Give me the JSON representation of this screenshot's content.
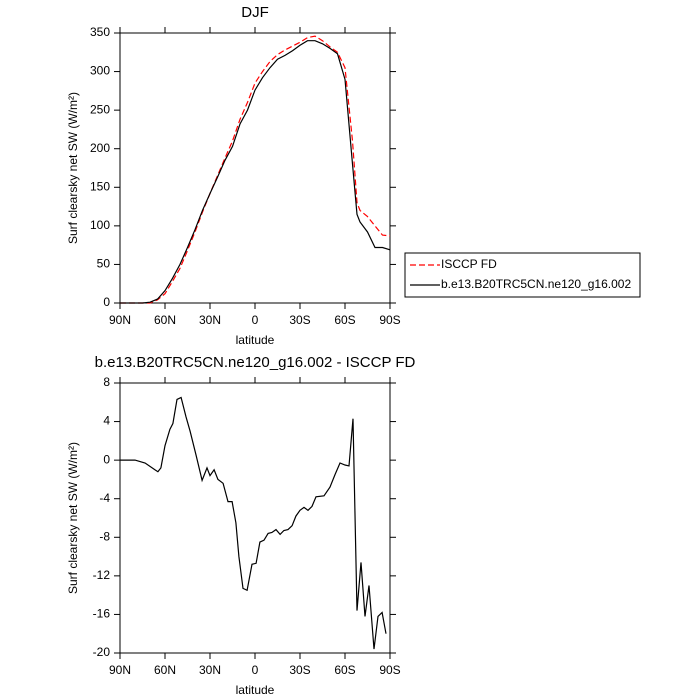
{
  "chart_data": [
    {
      "type": "line",
      "title": "DJF",
      "xlabel": "latitude",
      "ylabel": "Surf clearsky net SW (W/m²)",
      "x": [
        90,
        85,
        80,
        75,
        70,
        65,
        60,
        55,
        50,
        45,
        40,
        35,
        30,
        25,
        20,
        15,
        10,
        5,
        0,
        -5,
        -10,
        -15,
        -20,
        -25,
        -30,
        -35,
        -40,
        -45,
        -50,
        -55,
        -60,
        -65,
        -68,
        -70,
        -75,
        -80,
        -85,
        -90
      ],
      "series": [
        {
          "name": "ISCCP FD",
          "color": "#ff0000",
          "linestyle": "dashed",
          "values": [
            0,
            0,
            0,
            0,
            0,
            4,
            12,
            28,
            45,
            68,
            92,
            118,
            142,
            165,
            188,
            210,
            238,
            260,
            285,
            300,
            313,
            322,
            328,
            333,
            338,
            344,
            346,
            340,
            332,
            325,
            305,
            210,
            130,
            120,
            112,
            100,
            88,
            87
          ]
        },
        {
          "name": "b.e13.B20TRC5CN.ne120_g16.002",
          "color": "#000000",
          "linestyle": "solid",
          "values": [
            0,
            0,
            0,
            0,
            1,
            5,
            16,
            32,
            50,
            72,
            95,
            120,
            142,
            163,
            185,
            203,
            232,
            250,
            276,
            292,
            305,
            316,
            321,
            327,
            334,
            340,
            340,
            336,
            330,
            323,
            290,
            180,
            115,
            105,
            92,
            72,
            72,
            69
          ]
        }
      ],
      "xlim": [
        90,
        -90
      ],
      "xticks": [
        {
          "value": 90,
          "label": "90N"
        },
        {
          "value": 60,
          "label": "60N"
        },
        {
          "value": 30,
          "label": "30N"
        },
        0,
        {
          "value": -30,
          "label": "30S"
        },
        {
          "value": -60,
          "label": "60S"
        },
        {
          "value": -90,
          "label": "90S"
        }
      ],
      "ylim": [
        0,
        350
      ],
      "yticks": [
        0,
        50,
        100,
        150,
        200,
        250,
        300,
        350
      ],
      "legend": "right"
    },
    {
      "type": "line",
      "title": "b.e13.B20TRC5CN.ne120_g16.002 - ISCCP FD",
      "xlabel": "latitude",
      "ylabel": "Surf clearsky net SW (W/m²)",
      "x": [
        90,
        80,
        73.3,
        66.7,
        64.7,
        62.7,
        60,
        56.7,
        54.7,
        52,
        49.3,
        46,
        43.3,
        39.3,
        35.3,
        32,
        30,
        27.3,
        24.7,
        21.3,
        18,
        15.3,
        12.7,
        10.7,
        8,
        5.3,
        2,
        -0.7,
        -3.3,
        -6,
        -8.7,
        -11.3,
        -14,
        -16.7,
        -19.3,
        -22,
        -24.7,
        -27.3,
        -30,
        -32.7,
        -35.3,
        -38,
        -40.7,
        -46,
        -50,
        -53.3,
        -56.7,
        -60,
        -62.7,
        -65.3,
        -68,
        -70.7,
        -73.3,
        -76,
        -79.3,
        -82,
        -84.7,
        -87.3
      ],
      "series": [
        {
          "name": "b.e13.B20TRC5CN.ne120_g16.002 - ISCCP FD",
          "color": "#000000",
          "linestyle": "solid",
          "values": [
            0,
            0,
            -0.3,
            -1.0,
            -1.2,
            -0.8,
            1.5,
            3.2,
            3.8,
            6.3,
            6.5,
            4.5,
            3,
            0.5,
            -2.1,
            -0.8,
            -1.6,
            -1,
            -2,
            -2.4,
            -4.3,
            -4.3,
            -6.5,
            -10,
            -13.3,
            -13.5,
            -10.8,
            -10.7,
            -8.5,
            -8.3,
            -7.6,
            -7.5,
            -7.2,
            -7.7,
            -7.3,
            -7.2,
            -6.8,
            -5.8,
            -5.2,
            -4.9,
            -5.2,
            -4.8,
            -3.8,
            -3.7,
            -2.8,
            -1.5,
            -0.3,
            -0.5,
            -0.6,
            4.3,
            -15.6,
            -10.6,
            -16.2,
            -13,
            -19.6,
            -16.2,
            -15.8,
            -18
          ]
        }
      ],
      "xlim": [
        90,
        -90
      ],
      "xticks": [
        {
          "value": 90,
          "label": "90N"
        },
        {
          "value": 60,
          "label": "60N"
        },
        {
          "value": 30,
          "label": "30N"
        },
        0,
        {
          "value": -30,
          "label": "30S"
        },
        {
          "value": -60,
          "label": "60S"
        },
        {
          "value": -90,
          "label": "90S"
        }
      ],
      "ylim": [
        -20,
        8
      ],
      "yticks": [
        8,
        4,
        0,
        -4,
        -8,
        -12,
        -16,
        -20
      ]
    }
  ]
}
